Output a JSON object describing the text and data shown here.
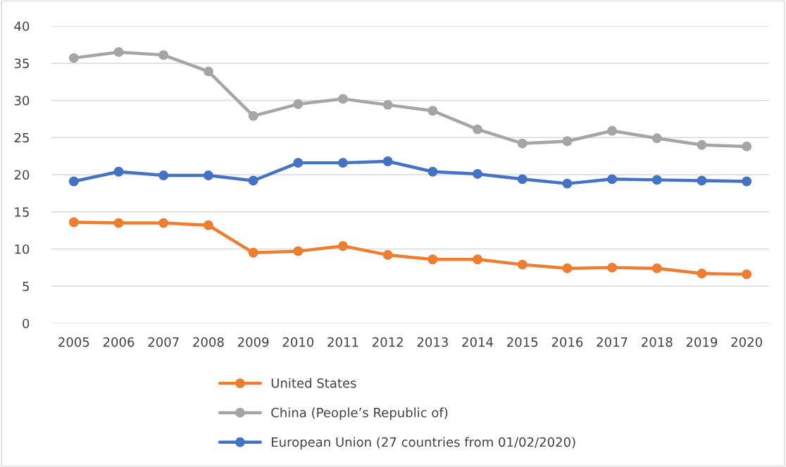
{
  "chart_data": {
    "type": "line",
    "categories": [
      "2005",
      "2006",
      "2007",
      "2008",
      "2009",
      "2010",
      "2011",
      "2012",
      "2013",
      "2014",
      "2015",
      "2016",
      "2017",
      "2018",
      "2019",
      "2020"
    ],
    "series": [
      {
        "name": "United States",
        "color": "#ed7d31",
        "values": [
          13.6,
          13.5,
          13.5,
          13.2,
          9.5,
          9.7,
          10.4,
          9.2,
          8.6,
          8.6,
          7.9,
          7.4,
          7.5,
          7.4,
          6.7,
          6.6
        ]
      },
      {
        "name": "China (People’s Republic of)",
        "color": "#a5a5a5",
        "values": [
          35.7,
          36.5,
          36.1,
          33.9,
          27.9,
          29.5,
          30.2,
          29.4,
          28.6,
          26.1,
          24.2,
          24.5,
          25.9,
          24.9,
          24.0,
          23.8
        ]
      },
      {
        "name": "European Union (27 countries from 01/02/2020)",
        "color": "#4472c4",
        "values": [
          19.1,
          20.4,
          19.9,
          19.9,
          19.2,
          21.6,
          21.6,
          21.8,
          20.4,
          20.1,
          19.4,
          18.8,
          19.4,
          19.3,
          19.2,
          19.1
        ]
      }
    ],
    "ylim": [
      0,
      40
    ],
    "yticks": [
      0,
      5,
      10,
      15,
      20,
      25,
      30,
      35,
      40
    ],
    "grid": "y",
    "legend": "bottom",
    "marker": "circle",
    "line_style": "solid"
  }
}
